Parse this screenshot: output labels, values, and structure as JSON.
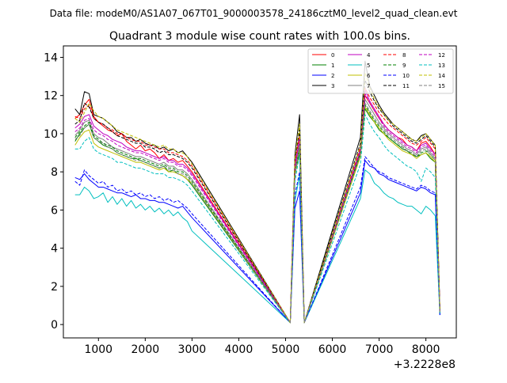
{
  "chart_data": {
    "type": "line",
    "suptitle": "Data file: modeM0/AS1A07_067T01_9000003578_24186cztM0_level2_quad_clean.evt",
    "title": "Quadrant 3 module wise count rates with 100.0s bins.",
    "xlabel": "",
    "ylabel": "",
    "x_offset_label": "+3.2228e8",
    "xlim": [
      250,
      8650
    ],
    "ylim": [
      -0.7,
      14.6
    ],
    "xticks": [
      1000,
      2000,
      3000,
      4000,
      5000,
      6000,
      7000,
      8000
    ],
    "xtick_labels": [
      "1000",
      "2000",
      "3000",
      "4000",
      "5000",
      "6000",
      "7000",
      "8000"
    ],
    "yticks": [
      0,
      2,
      4,
      6,
      8,
      10,
      12,
      14
    ],
    "ytick_labels": [
      "0",
      "2",
      "4",
      "6",
      "8",
      "10",
      "12",
      "14"
    ],
    "legend_location": "upper right",
    "segments": [
      {
        "start": 500,
        "count": 26,
        "step": 100
      },
      {
        "start": 5100,
        "count": 4,
        "step": 100
      },
      {
        "start": 6600,
        "count": 18,
        "step": 100
      }
    ],
    "series": [
      {
        "name": "0",
        "color": "#ff0000",
        "dash": "solid",
        "values": [
          10.8,
          11.0,
          11.5,
          11.8,
          10.9,
          10.6,
          10.4,
          10.2,
          10.1,
          9.9,
          10.0,
          9.6,
          9.4,
          9.2,
          9.4,
          9.1,
          9.2,
          9.0,
          8.7,
          8.9,
          8.6,
          8.7,
          8.5,
          8.6,
          8.3,
          8.0,
          0.1,
          8.1,
          9.5,
          0.1,
          9.0,
          12.0,
          11.6,
          11.2,
          10.8,
          10.5,
          10.2,
          10.0,
          9.8,
          9.7,
          9.4,
          9.3,
          9.1,
          9.5,
          9.6,
          9.3,
          8.9,
          0.7
        ]
      },
      {
        "name": "1",
        "color": "#008000",
        "dash": "solid",
        "values": [
          9.6,
          10.0,
          10.3,
          10.5,
          9.8,
          9.6,
          9.4,
          9.3,
          9.2,
          9.0,
          8.9,
          8.8,
          8.7,
          8.7,
          8.6,
          8.5,
          8.4,
          8.3,
          8.2,
          8.3,
          8.0,
          8.1,
          7.9,
          7.8,
          7.6,
          7.3,
          0.1,
          7.9,
          9.0,
          0.1,
          8.9,
          11.3,
          10.9,
          10.6,
          10.2,
          10.0,
          9.8,
          9.6,
          9.4,
          9.2,
          9.1,
          8.9,
          8.8,
          8.9,
          9.0,
          8.7,
          8.5,
          0.6
        ]
      },
      {
        "name": "2",
        "color": "#0000ff",
        "dash": "solid",
        "values": [
          7.7,
          7.6,
          7.9,
          7.6,
          7.4,
          7.2,
          7.2,
          7.1,
          7.0,
          6.9,
          6.9,
          6.8,
          6.7,
          6.8,
          6.6,
          6.6,
          6.5,
          6.5,
          6.4,
          6.4,
          6.3,
          6.2,
          6.1,
          6.2,
          5.9,
          5.6,
          0.1,
          6.1,
          7.0,
          0.1,
          6.9,
          8.6,
          8.3,
          8.2,
          7.9,
          7.8,
          7.6,
          7.5,
          7.4,
          7.3,
          7.2,
          7.1,
          7.0,
          7.2,
          7.1,
          6.9,
          6.8,
          0.5
        ]
      },
      {
        "name": "3",
        "color": "#000000",
        "dash": "solid",
        "values": [
          11.3,
          11.0,
          12.2,
          12.1,
          11.0,
          10.9,
          10.8,
          10.6,
          10.4,
          10.1,
          10.0,
          9.8,
          9.8,
          9.6,
          9.7,
          9.5,
          9.4,
          9.4,
          9.2,
          9.3,
          9.1,
          9.2,
          9.0,
          9.1,
          8.8,
          8.5,
          0.1,
          8.9,
          11.0,
          0.1,
          9.8,
          13.8,
          12.5,
          12.0,
          11.5,
          11.1,
          10.8,
          10.5,
          10.3,
          10.1,
          9.9,
          9.7,
          9.6,
          9.9,
          10.0,
          9.7,
          9.4,
          0.8
        ]
      },
      {
        "name": "4",
        "color": "#c000c0",
        "dash": "solid",
        "values": [
          10.3,
          10.5,
          10.9,
          11.0,
          10.4,
          10.2,
          10.0,
          9.9,
          9.7,
          9.6,
          9.5,
          9.3,
          9.2,
          9.1,
          9.1,
          9.0,
          8.9,
          8.8,
          8.7,
          8.8,
          8.6,
          8.6,
          8.4,
          8.4,
          8.2,
          7.9,
          0.1,
          8.3,
          9.8,
          0.1,
          9.2,
          12.3,
          11.7,
          11.3,
          10.9,
          10.5,
          10.2,
          10.0,
          9.8,
          9.6,
          9.4,
          9.3,
          9.1,
          9.4,
          9.5,
          9.2,
          8.9,
          0.7
        ]
      },
      {
        "name": "5",
        "color": "#00bfbf",
        "dash": "solid",
        "values": [
          6.8,
          6.8,
          7.2,
          7.0,
          6.6,
          6.7,
          6.9,
          6.4,
          6.7,
          6.3,
          6.6,
          6.2,
          6.5,
          6.1,
          6.3,
          6.0,
          6.2,
          5.9,
          6.1,
          5.8,
          6.0,
          5.7,
          5.9,
          5.6,
          5.4,
          4.9,
          0.1,
          6.5,
          7.8,
          0.1,
          6.6,
          8.1,
          7.9,
          7.4,
          7.2,
          6.9,
          6.7,
          6.6,
          6.4,
          6.3,
          6.2,
          6.2,
          6.0,
          5.8,
          6.2,
          6.0,
          5.7,
          0.5
        ]
      },
      {
        "name": "6",
        "color": "#bfbf00",
        "dash": "solid",
        "values": [
          9.4,
          9.8,
          10.1,
          10.2,
          9.5,
          9.3,
          9.2,
          9.1,
          9.0,
          8.9,
          8.8,
          8.7,
          8.6,
          8.5,
          8.5,
          8.4,
          8.3,
          8.2,
          8.1,
          8.2,
          8.0,
          8.0,
          7.9,
          7.8,
          7.6,
          7.4,
          0.1,
          7.8,
          9.3,
          0.1,
          8.8,
          11.4,
          11.0,
          10.6,
          10.3,
          10.0,
          9.7,
          9.5,
          9.3,
          9.1,
          9.0,
          8.9,
          8.7,
          8.9,
          9.0,
          8.8,
          8.5,
          0.6
        ]
      },
      {
        "name": "7",
        "color": "#808080",
        "dash": "solid",
        "values": [
          9.9,
          10.2,
          10.6,
          10.7,
          10.0,
          9.8,
          9.7,
          9.5,
          9.3,
          9.2,
          9.1,
          9.0,
          8.9,
          8.8,
          8.8,
          8.7,
          8.6,
          8.5,
          8.4,
          8.5,
          8.3,
          8.3,
          8.1,
          8.1,
          7.9,
          7.6,
          0.1,
          8.0,
          9.6,
          0.1,
          9.1,
          11.8,
          11.4,
          11.0,
          10.6,
          10.3,
          10.0,
          9.8,
          9.6,
          9.4,
          9.2,
          9.1,
          8.9,
          9.2,
          9.3,
          9.0,
          8.7,
          0.6
        ]
      },
      {
        "name": "8",
        "color": "#ff0000",
        "dash": "dashed",
        "values": [
          10.9,
          10.8,
          11.3,
          11.5,
          10.8,
          10.6,
          10.5,
          10.3,
          10.2,
          10.0,
          10.0,
          9.8,
          9.7,
          9.6,
          9.6,
          9.4,
          9.4,
          9.3,
          9.2,
          9.2,
          9.0,
          9.0,
          8.9,
          8.8,
          8.6,
          8.3,
          0.1,
          8.5,
          9.9,
          0.1,
          9.3,
          12.4,
          11.9,
          11.5,
          11.1,
          10.8,
          10.5,
          10.3,
          10.1,
          9.9,
          9.7,
          9.5,
          9.4,
          9.6,
          9.8,
          9.5,
          9.2,
          0.7
        ]
      },
      {
        "name": "9",
        "color": "#008000",
        "dash": "dashed",
        "values": [
          9.8,
          10.1,
          10.4,
          10.6,
          9.9,
          9.7,
          9.5,
          9.4,
          9.3,
          9.1,
          9.0,
          8.9,
          8.8,
          8.7,
          8.7,
          8.6,
          8.5,
          8.4,
          8.3,
          8.4,
          8.2,
          8.2,
          8.0,
          8.0,
          7.8,
          7.5,
          0.1,
          7.9,
          9.3,
          0.1,
          9.0,
          11.5,
          11.1,
          10.7,
          10.4,
          10.1,
          9.8,
          9.6,
          9.4,
          9.3,
          9.1,
          9.0,
          8.8,
          9.0,
          9.1,
          8.9,
          8.6,
          0.6
        ]
      },
      {
        "name": "10",
        "color": "#0000ff",
        "dash": "dashed",
        "values": [
          7.5,
          7.3,
          8.1,
          7.8,
          7.6,
          7.4,
          7.5,
          7.2,
          7.3,
          7.0,
          7.1,
          6.9,
          7.0,
          6.8,
          6.9,
          6.7,
          6.8,
          6.6,
          6.7,
          6.5,
          6.6,
          6.4,
          6.5,
          6.3,
          6.1,
          5.8,
          0.1,
          6.8,
          8.0,
          0.1,
          7.2,
          8.8,
          8.5,
          8.2,
          8.0,
          7.9,
          7.7,
          7.6,
          7.5,
          7.4,
          7.3,
          7.2,
          7.1,
          7.3,
          7.2,
          7.0,
          6.9,
          0.5
        ]
      },
      {
        "name": "11",
        "color": "#000000",
        "dash": "dashed",
        "values": [
          10.5,
          10.7,
          11.6,
          11.4,
          10.8,
          10.6,
          10.5,
          10.3,
          10.1,
          9.9,
          9.8,
          9.7,
          9.6,
          9.5,
          9.5,
          9.3,
          9.3,
          9.2,
          9.0,
          9.1,
          8.9,
          8.9,
          8.8,
          8.7,
          8.5,
          8.2,
          0.1,
          8.6,
          10.2,
          0.1,
          9.5,
          12.8,
          12.2,
          11.7,
          11.3,
          11.0,
          10.7,
          10.4,
          10.2,
          10.0,
          9.8,
          9.6,
          9.5,
          9.7,
          9.9,
          9.6,
          9.3,
          0.7
        ]
      },
      {
        "name": "12",
        "color": "#c000c0",
        "dash": "dashed",
        "values": [
          10.1,
          10.3,
          10.7,
          10.8,
          10.2,
          10.0,
          9.9,
          9.7,
          9.6,
          9.4,
          9.3,
          9.2,
          9.1,
          9.0,
          9.0,
          8.9,
          8.8,
          8.7,
          8.6,
          8.7,
          8.5,
          8.5,
          8.3,
          8.3,
          8.1,
          7.8,
          0.1,
          8.2,
          9.7,
          0.1,
          9.1,
          12.1,
          11.6,
          11.2,
          10.8,
          10.4,
          10.1,
          9.9,
          9.7,
          9.5,
          9.3,
          9.2,
          9.0,
          9.3,
          9.4,
          9.1,
          8.8,
          0.7
        ]
      },
      {
        "name": "13",
        "color": "#00bfbf",
        "dash": "dashed",
        "values": [
          9.2,
          9.2,
          9.6,
          9.8,
          9.2,
          9.0,
          8.9,
          8.8,
          8.7,
          8.5,
          8.5,
          8.4,
          8.3,
          8.2,
          8.2,
          8.1,
          8.0,
          7.9,
          7.9,
          7.9,
          7.7,
          7.7,
          7.6,
          7.5,
          7.3,
          7.0,
          0.1,
          7.5,
          8.9,
          0.1,
          8.4,
          11.0,
          10.5,
          10.1,
          9.8,
          9.4,
          9.1,
          8.9,
          8.7,
          8.5,
          8.3,
          8.2,
          8.0,
          7.5,
          8.2,
          8.0,
          7.7,
          0.6
        ]
      },
      {
        "name": "14",
        "color": "#bfbf00",
        "dash": "dashed",
        "values": [
          10.8,
          10.6,
          11.1,
          11.6,
          11.2,
          10.9,
          10.8,
          10.6,
          10.4,
          10.2,
          10.1,
          10.0,
          9.9,
          9.8,
          9.7,
          9.6,
          9.5,
          9.4,
          9.3,
          9.4,
          9.2,
          9.2,
          9.0,
          9.0,
          8.8,
          8.4,
          0.1,
          8.7,
          10.5,
          0.1,
          9.4,
          13.2,
          12.4,
          11.8,
          11.4,
          11.0,
          10.7,
          10.5,
          10.3,
          10.1,
          9.9,
          9.7,
          9.6,
          9.8,
          10.0,
          9.7,
          9.4,
          0.7
        ]
      },
      {
        "name": "15",
        "color": "#808080",
        "dash": "dashed",
        "values": [
          9.7,
          9.9,
          10.3,
          10.5,
          9.8,
          9.6,
          9.5,
          9.3,
          9.2,
          9.0,
          8.9,
          8.8,
          8.7,
          8.6,
          8.6,
          8.5,
          8.4,
          8.3,
          8.2,
          8.3,
          8.1,
          8.1,
          7.9,
          7.9,
          7.7,
          7.4,
          0.1,
          7.8,
          9.4,
          0.1,
          8.9,
          11.6,
          11.2,
          10.8,
          10.5,
          10.2,
          9.9,
          9.7,
          9.5,
          9.3,
          9.1,
          9.0,
          8.8,
          9.1,
          9.2,
          8.9,
          8.6,
          0.6
        ]
      }
    ]
  }
}
